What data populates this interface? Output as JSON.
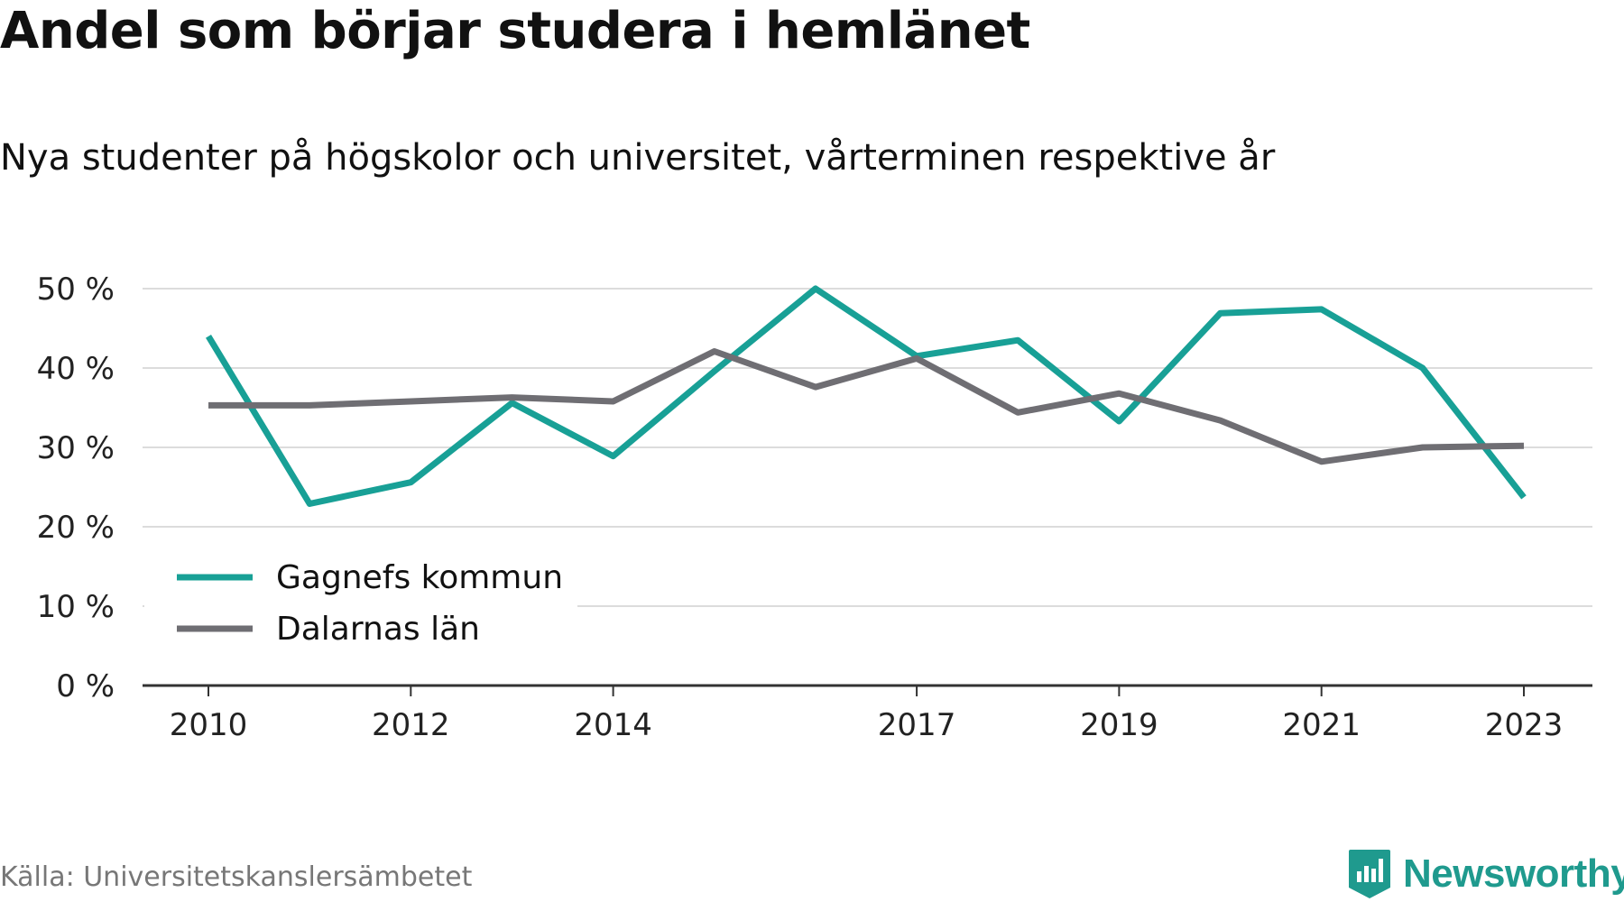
{
  "title": "Andel som börjar studera i hemlänet",
  "subtitle": "Nya studenter på högskolor och universitet, vårterminen respektive år",
  "source": "Källa: Universitetskanslersämbetet",
  "brand": {
    "name": "Newsworthy",
    "icon": "newsworthy-logo-icon",
    "color": "#1f9a8e"
  },
  "chart_data": {
    "type": "line",
    "ylim": [
      0,
      50
    ],
    "y_ticks": [
      0,
      10,
      20,
      30,
      40,
      50
    ],
    "y_tick_labels": [
      "0 %",
      "10 %",
      "20 %",
      "30 %",
      "40 %",
      "50 %"
    ],
    "x_ticks": [
      2010,
      2012,
      2014,
      2017,
      2019,
      2021,
      2023
    ],
    "x_tick_labels": [
      "2010",
      "2012",
      "2014",
      "2017",
      "2019",
      "2021",
      "2023"
    ],
    "grid": true,
    "legend_position": "bottom-left",
    "x": [
      2010,
      2011,
      2012,
      2013,
      2014,
      2015,
      2016,
      2017,
      2018,
      2019,
      2020,
      2021,
      2022,
      2023
    ],
    "series": [
      {
        "name": "Gagnefs kommun",
        "color": "#18a096",
        "values": [
          44.0,
          22.9,
          25.6,
          35.6,
          28.9,
          39.6,
          50.0,
          41.5,
          43.5,
          33.3,
          46.9,
          47.4,
          40.0,
          23.7
        ]
      },
      {
        "name": "Dalarnas län",
        "color": "#6f6e73",
        "values": [
          35.3,
          35.3,
          35.8,
          36.3,
          35.8,
          42.1,
          37.6,
          41.2,
          34.4,
          36.8,
          33.4,
          28.2,
          30.0,
          30.2
        ]
      }
    ]
  }
}
